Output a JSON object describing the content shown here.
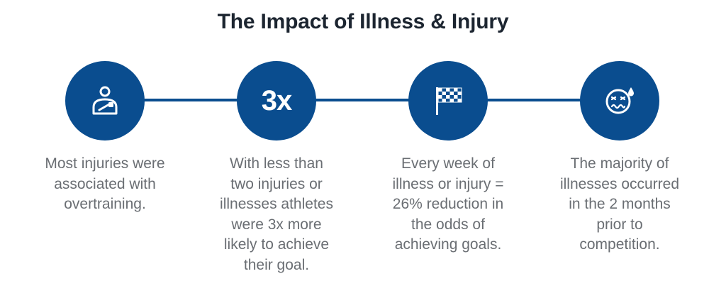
{
  "title": "The Impact of Illness & Injury",
  "colors": {
    "primary": "#0a4d8f",
    "title_text": "#1c2530",
    "body_text": "#6a6e73"
  },
  "steps": [
    {
      "icon": "injured-person-icon",
      "label": "",
      "caption": "Most injuries were associated with overtraining."
    },
    {
      "icon": "",
      "label": "3x",
      "caption": "With less than two injuries or illnesses athletes were 3x more likely to achieve their goal."
    },
    {
      "icon": "checkered-flag-icon",
      "label": "",
      "caption": "Every week of illness or injury = 26% reduction in the odds of achieving goals."
    },
    {
      "icon": "sick-face-icon",
      "label": "",
      "caption": "The majority of illnesses occurred in the 2 months prior to competition."
    }
  ]
}
